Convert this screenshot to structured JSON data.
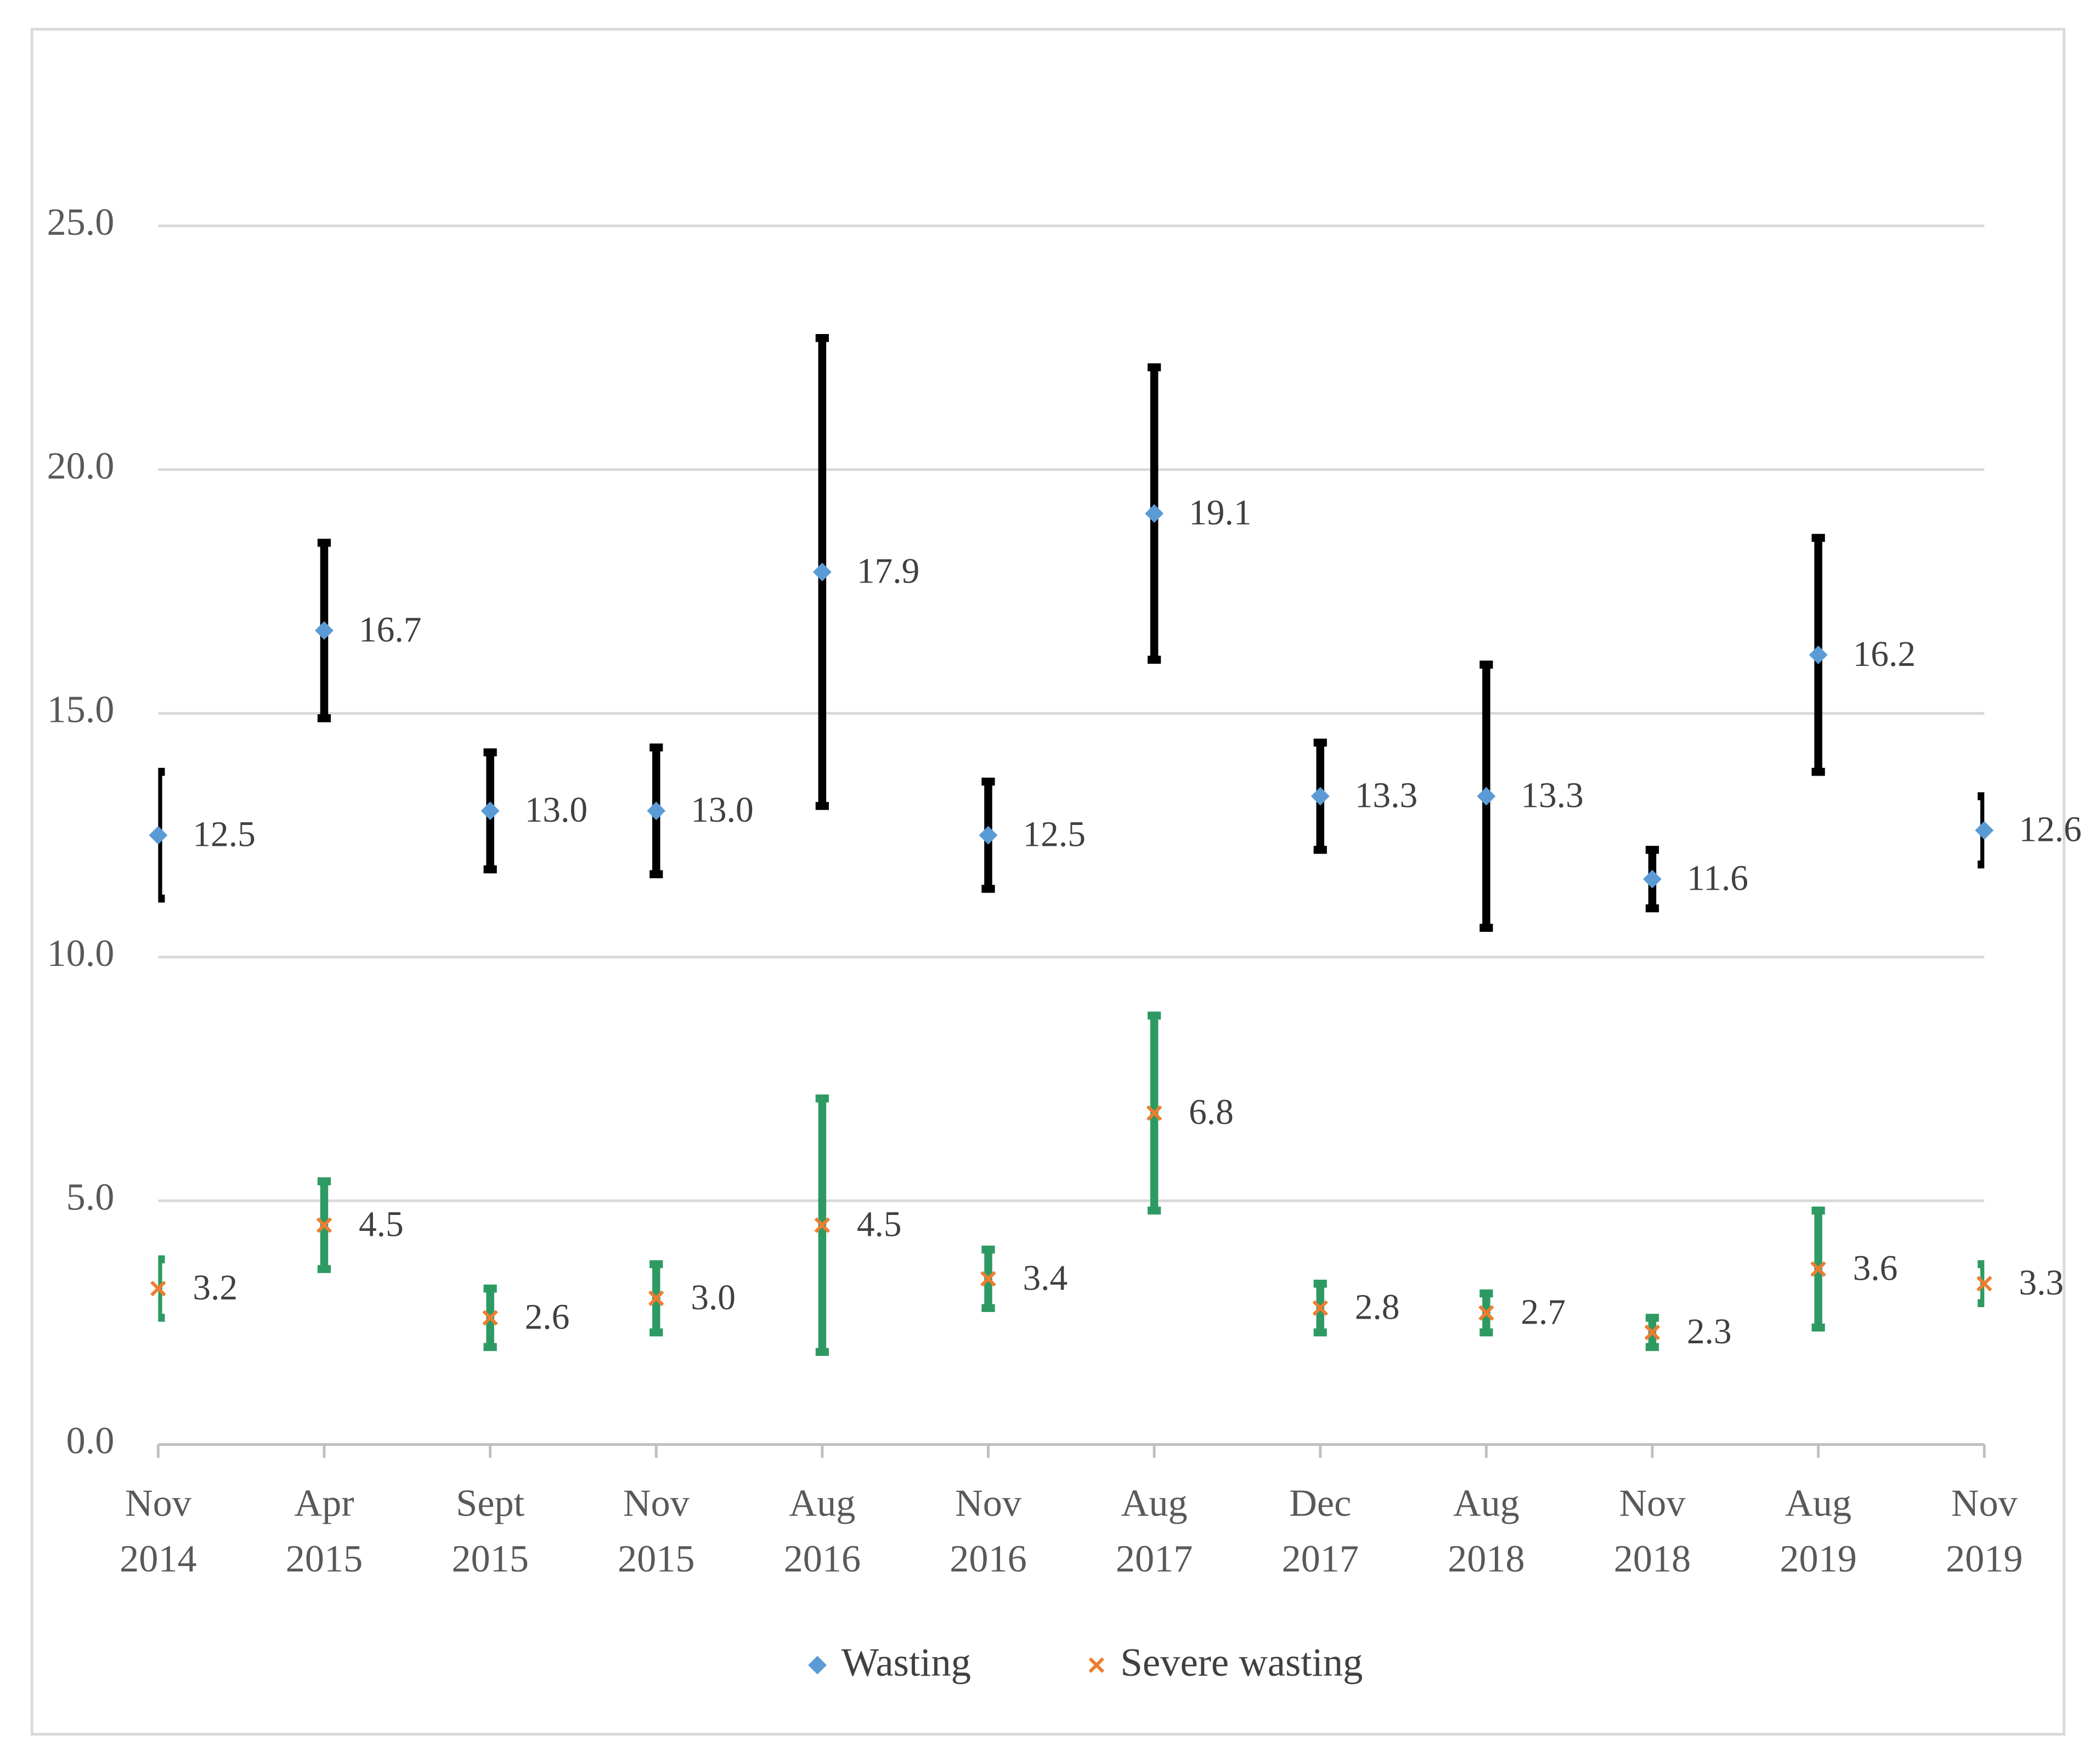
{
  "chart_data": {
    "type": "errorbar",
    "categories": [
      "Nov 2014",
      "Apr 2015",
      "Sept 2015",
      "Nov 2015",
      "Aug 2016",
      "Nov 2016",
      "Aug 2017",
      "Dec 2017",
      "Aug 2018",
      "Nov 2018",
      "Aug 2019",
      "Nov 2019"
    ],
    "series": [
      {
        "name": "Wasting",
        "color": "#5b9bd5",
        "marker": "diamond",
        "error_color": "#000000",
        "values": [
          12.5,
          16.7,
          13.0,
          13.0,
          17.9,
          12.5,
          19.1,
          13.3,
          13.3,
          11.6,
          16.2,
          12.6
        ],
        "value_labels": [
          "12.5",
          "16.7",
          "13.0",
          "13.0",
          "17.9",
          "12.5",
          "19.1",
          "13.3",
          "13.3",
          "11.6",
          "16.2",
          "12.6"
        ],
        "errors": [
          1.3,
          1.8,
          1.2,
          1.3,
          4.8,
          1.1,
          3.0,
          1.1,
          2.7,
          0.6,
          2.4,
          0.7
        ]
      },
      {
        "name": "Severe wasting",
        "color": "#ed7d31",
        "marker": "x",
        "error_color": "#2e9a63",
        "values": [
          3.2,
          4.5,
          2.6,
          3.0,
          4.5,
          3.4,
          6.8,
          2.8,
          2.7,
          2.3,
          3.6,
          3.3
        ],
        "value_labels": [
          "3.2",
          "4.5",
          "2.6",
          "3.0",
          "4.5",
          "3.4",
          "6.8",
          "2.8",
          "2.7",
          "2.3",
          "3.6",
          "3.3"
        ],
        "errors": [
          0.6,
          0.9,
          0.6,
          0.7,
          2.6,
          0.6,
          2.0,
          0.5,
          0.4,
          0.3,
          1.2,
          0.4
        ]
      }
    ],
    "ylim": [
      0,
      27.5
    ],
    "yticks": [
      {
        "value": 0,
        "label": "0.0"
      },
      {
        "value": 5,
        "label": "5.0"
      },
      {
        "value": 10,
        "label": "10.0"
      },
      {
        "value": 15,
        "label": "15.0"
      },
      {
        "value": 20,
        "label": "20.0"
      },
      {
        "value": 25,
        "label": "25.0"
      }
    ],
    "grid": true,
    "legend": "bottom"
  }
}
